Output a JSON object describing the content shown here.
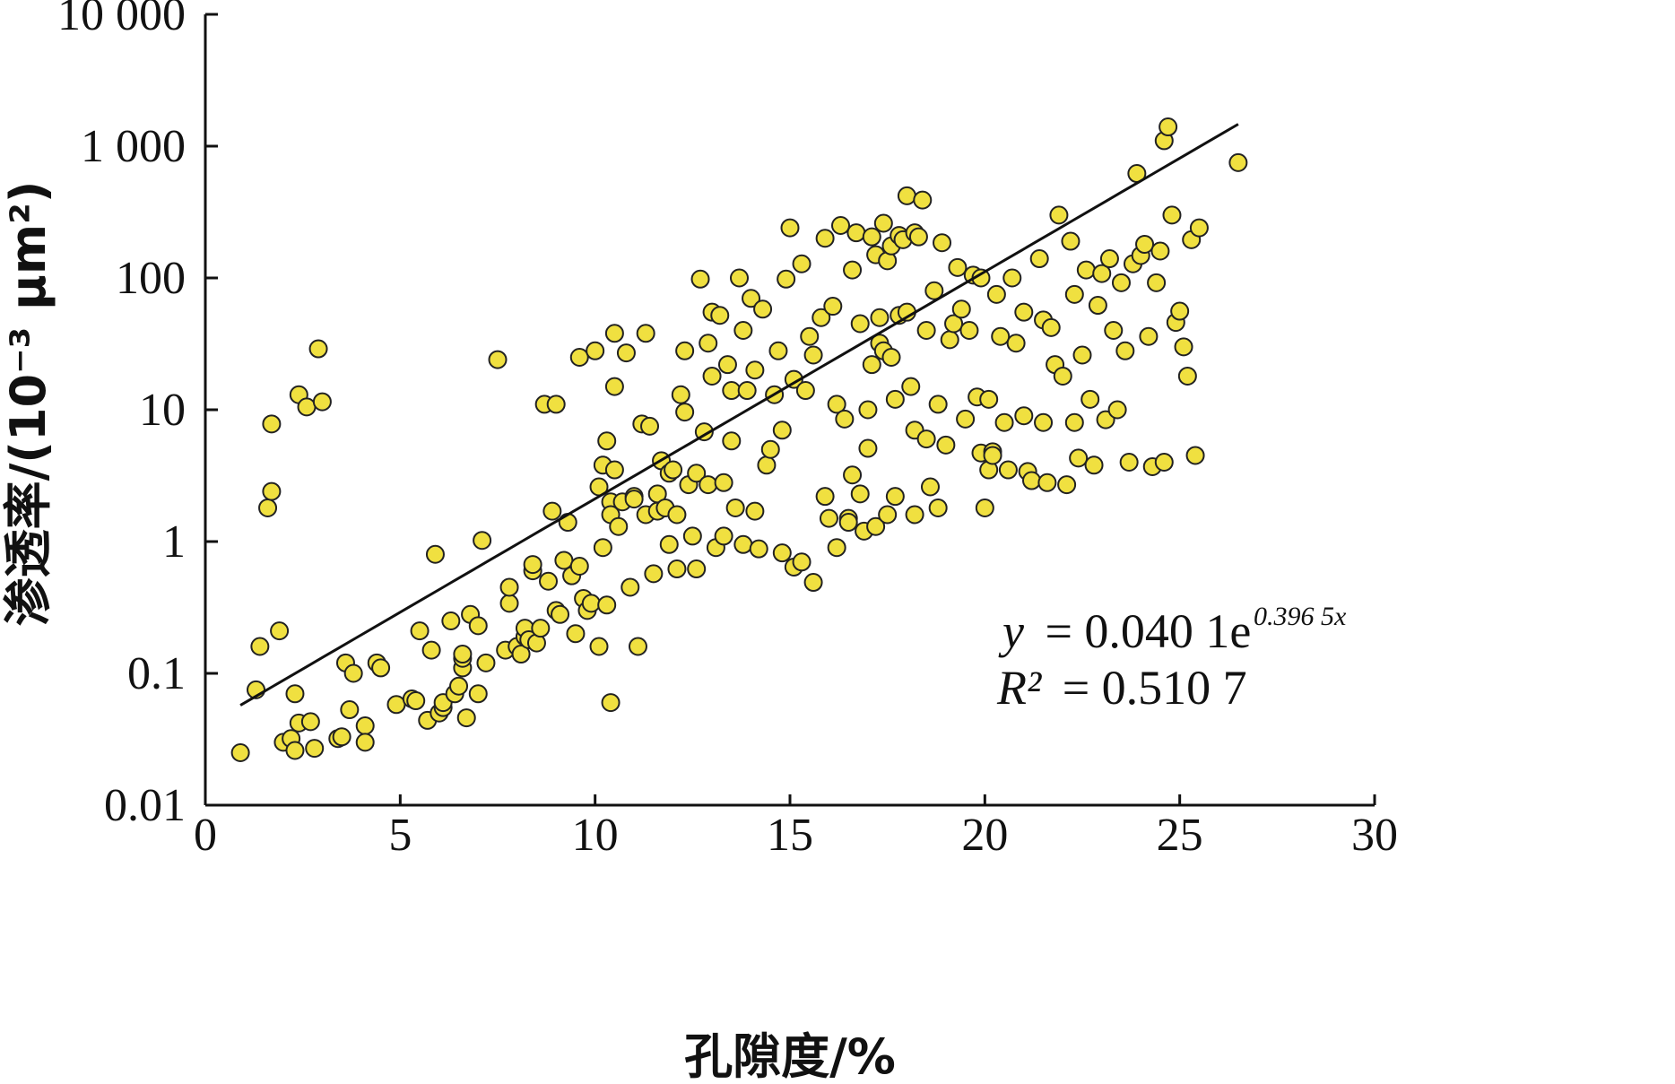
{
  "chart_data": {
    "type": "scatter",
    "xlabel": "孔隙度/%",
    "ylabel": "渗透率/(10⁻³ μm²)",
    "xlim": [
      0,
      30
    ],
    "ylim": [
      0.01,
      10000
    ],
    "yscale": "log",
    "x_ticks": [
      "0",
      "5",
      "10",
      "15",
      "20",
      "25",
      "30"
    ],
    "y_ticks": [
      "0.01",
      "0.1",
      "1",
      "10",
      "100",
      "1 000",
      "10 000"
    ],
    "marker_color": "#f0e040",
    "marker_edge": "#222222",
    "trendline": {
      "a": 0.0401,
      "b": 0.3965,
      "x_start": 0.9,
      "x_end": 26.5
    },
    "equation": {
      "y_label": "y",
      "equals": "= 0.040 1e",
      "exponent": "0.396 5x"
    },
    "r2": {
      "label": "R²",
      "equals": "= 0.510 7"
    },
    "points": [
      [
        0.9,
        0.025
      ],
      [
        1.3,
        0.075
      ],
      [
        1.4,
        0.16
      ],
      [
        1.6,
        1.8
      ],
      [
        1.7,
        2.4
      ],
      [
        1.7,
        7.8
      ],
      [
        1.9,
        0.21
      ],
      [
        2.0,
        0.03
      ],
      [
        2.2,
        0.032
      ],
      [
        2.3,
        0.026
      ],
      [
        2.3,
        0.07
      ],
      [
        2.4,
        0.042
      ],
      [
        2.4,
        13
      ],
      [
        2.6,
        10.5
      ],
      [
        2.7,
        0.043
      ],
      [
        2.8,
        0.027
      ],
      [
        2.9,
        29
      ],
      [
        3.0,
        11.5
      ],
      [
        3.4,
        0.032
      ],
      [
        3.5,
        0.033
      ],
      [
        3.6,
        0.12
      ],
      [
        3.7,
        0.053
      ],
      [
        3.8,
        0.1
      ],
      [
        4.1,
        0.04
      ],
      [
        4.1,
        0.03
      ],
      [
        4.4,
        0.12
      ],
      [
        4.5,
        0.11
      ],
      [
        4.9,
        0.058
      ],
      [
        5.3,
        0.064
      ],
      [
        5.4,
        0.062
      ],
      [
        5.5,
        0.21
      ],
      [
        5.7,
        0.044
      ],
      [
        5.8,
        0.15
      ],
      [
        5.9,
        0.8
      ],
      [
        6.0,
        0.05
      ],
      [
        6.1,
        0.055
      ],
      [
        6.1,
        0.06
      ],
      [
        6.3,
        0.25
      ],
      [
        6.4,
        0.07
      ],
      [
        6.5,
        0.08
      ],
      [
        6.6,
        0.11
      ],
      [
        6.6,
        0.13
      ],
      [
        6.6,
        0.14
      ],
      [
        6.7,
        0.046
      ],
      [
        6.8,
        0.28
      ],
      [
        7.0,
        0.07
      ],
      [
        7.0,
        0.23
      ],
      [
        7.1,
        1.02
      ],
      [
        7.2,
        0.12
      ],
      [
        7.5,
        24
      ],
      [
        7.7,
        0.15
      ],
      [
        7.8,
        0.34
      ],
      [
        7.8,
        0.45
      ],
      [
        8.0,
        0.16
      ],
      [
        8.1,
        0.14
      ],
      [
        8.2,
        0.19
      ],
      [
        8.2,
        0.22
      ],
      [
        8.3,
        0.18
      ],
      [
        8.4,
        0.6
      ],
      [
        8.4,
        0.67
      ],
      [
        8.5,
        0.17
      ],
      [
        8.6,
        0.22
      ],
      [
        8.7,
        11
      ],
      [
        8.8,
        0.5
      ],
      [
        8.9,
        1.7
      ],
      [
        9.0,
        11
      ],
      [
        9.0,
        0.3
      ],
      [
        9.1,
        0.28
      ],
      [
        9.2,
        0.72
      ],
      [
        9.3,
        1.4
      ],
      [
        9.4,
        0.55
      ],
      [
        9.5,
        0.2
      ],
      [
        9.6,
        0.65
      ],
      [
        9.6,
        25
      ],
      [
        9.7,
        0.37
      ],
      [
        9.8,
        0.3
      ],
      [
        9.9,
        0.34
      ],
      [
        10.0,
        28
      ],
      [
        10.1,
        2.6
      ],
      [
        10.1,
        0.16
      ],
      [
        10.2,
        3.8
      ],
      [
        10.2,
        0.9
      ],
      [
        10.3,
        5.8
      ],
      [
        10.3,
        0.33
      ],
      [
        10.4,
        2.0
      ],
      [
        10.4,
        1.6
      ],
      [
        10.4,
        0.06
      ],
      [
        10.5,
        38
      ],
      [
        10.5,
        15
      ],
      [
        10.5,
        3.5
      ],
      [
        10.6,
        1.3
      ],
      [
        10.7,
        2.0
      ],
      [
        10.8,
        27
      ],
      [
        10.9,
        0.45
      ],
      [
        11.0,
        2.2
      ],
      [
        11.0,
        2.1
      ],
      [
        11.1,
        0.16
      ],
      [
        11.2,
        7.8
      ],
      [
        11.3,
        38
      ],
      [
        11.3,
        1.6
      ],
      [
        11.4,
        7.5
      ],
      [
        11.5,
        0.57
      ],
      [
        11.6,
        2.3
      ],
      [
        11.6,
        1.7
      ],
      [
        11.7,
        4.1
      ],
      [
        11.8,
        1.8
      ],
      [
        11.9,
        3.3
      ],
      [
        11.9,
        0.95
      ],
      [
        12.0,
        3.5
      ],
      [
        12.1,
        0.62
      ],
      [
        12.1,
        1.6
      ],
      [
        12.2,
        13
      ],
      [
        12.3,
        28
      ],
      [
        12.3,
        9.6
      ],
      [
        12.4,
        2.7
      ],
      [
        12.5,
        1.1
      ],
      [
        12.6,
        3.3
      ],
      [
        12.6,
        0.62
      ],
      [
        12.7,
        98
      ],
      [
        12.8,
        6.8
      ],
      [
        12.9,
        32
      ],
      [
        12.9,
        2.7
      ],
      [
        13.0,
        55
      ],
      [
        13.0,
        18
      ],
      [
        13.1,
        0.9
      ],
      [
        13.2,
        52
      ],
      [
        13.3,
        2.8
      ],
      [
        13.3,
        1.1
      ],
      [
        13.4,
        22
      ],
      [
        13.5,
        14
      ],
      [
        13.5,
        5.8
      ],
      [
        13.6,
        1.8
      ],
      [
        13.7,
        100
      ],
      [
        13.8,
        40
      ],
      [
        13.8,
        0.95
      ],
      [
        13.9,
        14
      ],
      [
        14.0,
        70
      ],
      [
        14.1,
        20
      ],
      [
        14.1,
        1.7
      ],
      [
        14.2,
        0.88
      ],
      [
        14.3,
        58
      ],
      [
        14.4,
        3.8
      ],
      [
        14.5,
        5.0
      ],
      [
        14.6,
        13
      ],
      [
        14.7,
        28
      ],
      [
        14.8,
        7.0
      ],
      [
        14.8,
        0.82
      ],
      [
        14.9,
        98
      ],
      [
        15.0,
        240
      ],
      [
        15.1,
        17
      ],
      [
        15.1,
        0.64
      ],
      [
        15.3,
        128
      ],
      [
        15.3,
        0.7
      ],
      [
        15.4,
        14
      ],
      [
        15.5,
        36
      ],
      [
        15.6,
        26
      ],
      [
        15.6,
        0.49
      ],
      [
        15.8,
        50
      ],
      [
        15.9,
        200
      ],
      [
        15.9,
        2.2
      ],
      [
        16.0,
        1.5
      ],
      [
        16.1,
        61
      ],
      [
        16.2,
        11
      ],
      [
        16.2,
        0.9
      ],
      [
        16.3,
        250
      ],
      [
        16.4,
        8.5
      ],
      [
        16.5,
        1.5
      ],
      [
        16.5,
        1.4
      ],
      [
        16.6,
        3.2
      ],
      [
        16.6,
        115
      ],
      [
        16.7,
        220
      ],
      [
        16.8,
        45
      ],
      [
        16.8,
        2.3
      ],
      [
        16.9,
        1.2
      ],
      [
        17.0,
        10
      ],
      [
        17.0,
        5.1
      ],
      [
        17.1,
        205
      ],
      [
        17.1,
        22
      ],
      [
        17.2,
        150
      ],
      [
        17.2,
        1.3
      ],
      [
        17.3,
        50
      ],
      [
        17.3,
        32
      ],
      [
        17.4,
        260
      ],
      [
        17.4,
        28
      ],
      [
        17.5,
        135
      ],
      [
        17.5,
        1.6
      ],
      [
        17.6,
        175
      ],
      [
        17.6,
        25
      ],
      [
        17.7,
        12
      ],
      [
        17.7,
        2.2
      ],
      [
        17.8,
        210
      ],
      [
        17.8,
        52
      ],
      [
        17.9,
        195
      ],
      [
        18.0,
        420
      ],
      [
        18.0,
        55
      ],
      [
        18.1,
        15
      ],
      [
        18.2,
        220
      ],
      [
        18.2,
        7.0
      ],
      [
        18.2,
        1.6
      ],
      [
        18.3,
        205
      ],
      [
        18.4,
        390
      ],
      [
        18.5,
        40
      ],
      [
        18.5,
        6.0
      ],
      [
        18.6,
        2.6
      ],
      [
        18.7,
        80
      ],
      [
        18.8,
        11
      ],
      [
        18.8,
        1.8
      ],
      [
        18.9,
        185
      ],
      [
        19.0,
        5.4
      ],
      [
        19.1,
        34
      ],
      [
        19.2,
        45
      ],
      [
        19.3,
        120
      ],
      [
        19.4,
        58
      ],
      [
        19.5,
        8.5
      ],
      [
        19.6,
        40
      ],
      [
        19.7,
        105
      ],
      [
        19.8,
        12.5
      ],
      [
        19.9,
        100
      ],
      [
        19.9,
        4.7
      ],
      [
        20.0,
        1.8
      ],
      [
        20.1,
        12
      ],
      [
        20.1,
        3.5
      ],
      [
        20.2,
        4.8
      ],
      [
        20.2,
        4.5
      ],
      [
        20.3,
        75
      ],
      [
        20.4,
        36
      ],
      [
        20.5,
        8.0
      ],
      [
        20.6,
        3.5
      ],
      [
        20.7,
        100
      ],
      [
        20.8,
        32
      ],
      [
        21.0,
        55
      ],
      [
        21.0,
        9.0
      ],
      [
        21.1,
        3.4
      ],
      [
        21.2,
        2.9
      ],
      [
        21.4,
        140
      ],
      [
        21.5,
        48
      ],
      [
        21.5,
        8.0
      ],
      [
        21.6,
        2.8
      ],
      [
        21.7,
        42
      ],
      [
        21.8,
        22
      ],
      [
        21.9,
        300
      ],
      [
        22.0,
        18
      ],
      [
        22.1,
        2.7
      ],
      [
        22.2,
        190
      ],
      [
        22.3,
        75
      ],
      [
        22.3,
        8.0
      ],
      [
        22.4,
        4.3
      ],
      [
        22.5,
        26
      ],
      [
        22.6,
        115
      ],
      [
        22.7,
        12
      ],
      [
        22.8,
        3.8
      ],
      [
        22.9,
        62
      ],
      [
        23.0,
        108
      ],
      [
        23.1,
        8.4
      ],
      [
        23.2,
        140
      ],
      [
        23.3,
        40
      ],
      [
        23.4,
        10
      ],
      [
        23.5,
        92
      ],
      [
        23.6,
        28
      ],
      [
        23.7,
        4.0
      ],
      [
        23.8,
        128
      ],
      [
        23.9,
        620
      ],
      [
        24.0,
        148
      ],
      [
        24.1,
        180
      ],
      [
        24.2,
        36
      ],
      [
        24.3,
        3.7
      ],
      [
        24.4,
        92
      ],
      [
        24.5,
        160
      ],
      [
        24.6,
        4.0
      ],
      [
        24.6,
        1100
      ],
      [
        24.7,
        1400
      ],
      [
        24.8,
        300
      ],
      [
        24.9,
        46
      ],
      [
        25.0,
        56
      ],
      [
        25.1,
        30
      ],
      [
        25.2,
        18
      ],
      [
        25.3,
        195
      ],
      [
        25.4,
        4.5
      ],
      [
        25.5,
        240
      ],
      [
        26.5,
        750
      ]
    ]
  }
}
